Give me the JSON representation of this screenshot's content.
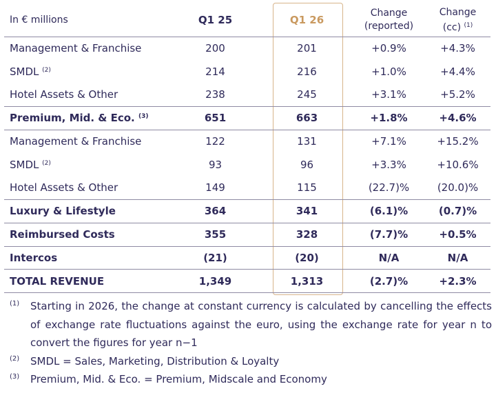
{
  "header": {
    "label": "In € millions",
    "q125": "Q1 25",
    "q126": "Q1 26",
    "chg_rep_line1": "Change",
    "chg_rep_line2": "(reported)",
    "chg_cc_line1": "Change",
    "chg_cc_line2": "(cc)",
    "chg_cc_note": "(1)"
  },
  "rows": [
    {
      "label": "Management & Franchise",
      "note": "",
      "q125": "200",
      "q126": "201",
      "rep": "+0.9%",
      "cc": "+4.3%"
    },
    {
      "label": "SMDL",
      "note": "(2)",
      "q125": "214",
      "q126": "216",
      "rep": "+1.0%",
      "cc": "+4.4%"
    },
    {
      "label": "Hotel Assets & Other",
      "note": "",
      "q125": "238",
      "q126": "245",
      "rep": "+3.1%",
      "cc": "+5.2%"
    },
    {
      "label": "Premium, Mid. & Eco.",
      "note": "(3)",
      "q125": "651",
      "q126": "663",
      "rep": "+1.8%",
      "cc": "+4.6%"
    },
    {
      "label": "Management & Franchise",
      "note": "",
      "q125": "122",
      "q126": "131",
      "rep": "+7.1%",
      "cc": "+15.2%"
    },
    {
      "label": "SMDL",
      "note": "(2)",
      "q125": "93",
      "q126": "96",
      "rep": "+3.3%",
      "cc": "+10.6%"
    },
    {
      "label": "Hotel Assets & Other",
      "note": "",
      "q125": "149",
      "q126": "115",
      "rep": "(22.7)%",
      "cc": "(20.0)%"
    },
    {
      "label": "Luxury & Lifestyle",
      "note": "",
      "q125": "364",
      "q126": "341",
      "rep": "(6.1)%",
      "cc": "(0.7)%"
    },
    {
      "label": "Reimbursed Costs",
      "note": "",
      "q125": "355",
      "q126": "328",
      "rep": "(7.7)%",
      "cc": "+0.5%"
    },
    {
      "label": "Intercos",
      "note": "",
      "q125": "(21)",
      "q126": "(20)",
      "rep": "N/A",
      "cc": "N/A"
    },
    {
      "label": "TOTAL REVENUE",
      "note": "",
      "q125": "1,349",
      "q126": "1,313",
      "rep": "(2.7)%",
      "cc": "+2.3%"
    }
  ],
  "footnotes": [
    {
      "mark": "(1)",
      "text": "Starting in 2026, the change at constant currency is calculated by cancelling the effects of exchange rate fluctuations against the euro, using the exchange rate for year n to convert the figures for year n−1"
    },
    {
      "mark": "(2)",
      "text": "SMDL = Sales, Marketing, Distribution & Loyalty"
    },
    {
      "mark": "(3)",
      "text": "Premium, Mid. & Eco. = Premium, Midscale and Economy"
    }
  ],
  "colors": {
    "text": "#2f2a5a",
    "highlight": "#c9995f",
    "rule": "#8e8aa3"
  }
}
